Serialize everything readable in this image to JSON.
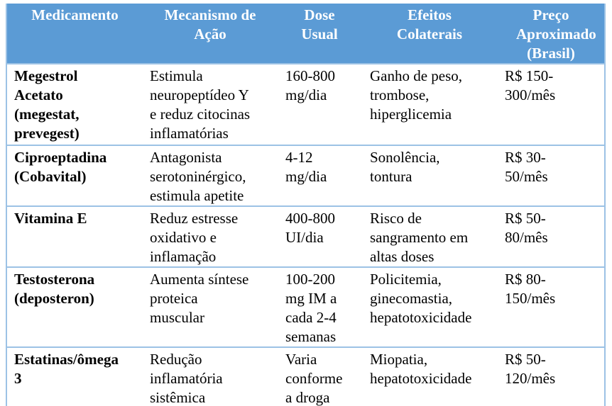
{
  "colors": {
    "header_background": "#5B9BD5",
    "header_text": "#FFFFFF",
    "grid_border": "#9CC2E5",
    "outer_bottom_border": "#41719C",
    "body_text": "#000000"
  },
  "table": {
    "columns": [
      {
        "id": "medicamento",
        "label": "Medicamento"
      },
      {
        "id": "mecanismo",
        "label": "Mecanismo de Ação"
      },
      {
        "id": "dose",
        "label": "Dose Usual"
      },
      {
        "id": "efeitos",
        "label": "Efeitos Colaterais"
      },
      {
        "id": "preco",
        "label": "Preço Aproximado (Brasil)"
      }
    ],
    "rows": [
      {
        "cells": [
          "Megestrol Acetato (megestat, prevegest)",
          "Estimula neuropeptídeo Y e reduz citocinas inflamatórias",
          "160-800 mg/dia",
          "Ganho de peso, trombose, hiperglicemia",
          "R$ 150-300/mês"
        ]
      },
      {
        "cells": [
          "Ciproeptadina (Cobavital)",
          "Antagonista serotoninérgico, estimula apetite",
          "4-12 mg/dia",
          "Sonolência, tontura",
          "R$ 30-50/mês"
        ]
      },
      {
        "cells": [
          "Vitamina E",
          "Reduz estresse oxidativo e inflamação",
          "400-800 UI/dia",
          "Risco de sangramento em altas doses",
          "R$ 50-80/mês"
        ]
      },
      {
        "cells": [
          "Testosterona (deposteron)",
          "Aumenta síntese proteica muscular",
          "100-200 mg IM a cada 2-4 semanas",
          "Policitemia, ginecomastia, hepatotoxicidade",
          "R$ 80-150/mês"
        ]
      },
      {
        "cells": [
          "Estatinas/ômega 3",
          "Redução inflamatória sistêmica",
          "Varia conforme a droga",
          "Miopatia, hepatotoxicidade",
          "R$ 50-120/mês"
        ]
      }
    ]
  }
}
